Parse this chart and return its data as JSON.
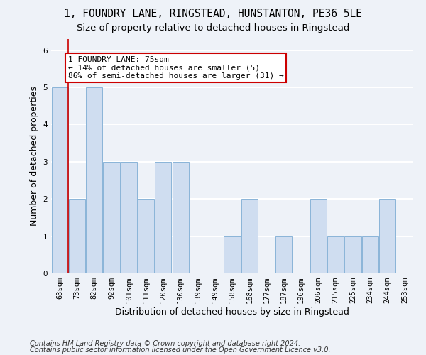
{
  "title1": "1, FOUNDRY LANE, RINGSTEAD, HUNSTANTON, PE36 5LE",
  "title2": "Size of property relative to detached houses in Ringstead",
  "xlabel": "Distribution of detached houses by size in Ringstead",
  "ylabel": "Number of detached properties",
  "categories": [
    "63sqm",
    "73sqm",
    "82sqm",
    "92sqm",
    "101sqm",
    "111sqm",
    "120sqm",
    "130sqm",
    "139sqm",
    "149sqm",
    "158sqm",
    "168sqm",
    "177sqm",
    "187sqm",
    "196sqm",
    "206sqm",
    "215sqm",
    "225sqm",
    "234sqm",
    "244sqm",
    "253sqm"
  ],
  "values": [
    5,
    2,
    5,
    3,
    3,
    2,
    3,
    3,
    0,
    0,
    1,
    2,
    0,
    1,
    0,
    2,
    1,
    1,
    1,
    2,
    0
  ],
  "bar_color": "#cfddf0",
  "bar_edge_color": "#8ab4d8",
  "property_line_index": 1,
  "annotation_line1": "1 FOUNDRY LANE: 75sqm",
  "annotation_line2": "← 14% of detached houses are smaller (5)",
  "annotation_line3": "86% of semi-detached houses are larger (31) →",
  "annotation_box_color": "#ffffff",
  "annotation_box_edge": "#cc0000",
  "vline_color": "#cc0000",
  "footer1": "Contains HM Land Registry data © Crown copyright and database right 2024.",
  "footer2": "Contains public sector information licensed under the Open Government Licence v3.0.",
  "ylim": [
    0,
    6.3
  ],
  "yticks": [
    0,
    1,
    2,
    3,
    4,
    5,
    6
  ],
  "bg_color": "#eef2f8",
  "grid_color": "#ffffff",
  "title1_fontsize": 10.5,
  "title2_fontsize": 9.5,
  "ylabel_fontsize": 9,
  "xlabel_fontsize": 9,
  "tick_fontsize": 7.5,
  "footer_fontsize": 7,
  "ann_fontsize": 8
}
